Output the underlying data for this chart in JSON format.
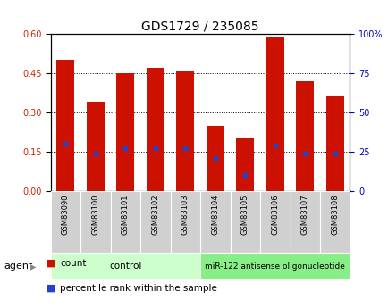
{
  "title": "GDS1729 / 235085",
  "samples": [
    "GSM83090",
    "GSM83100",
    "GSM83101",
    "GSM83102",
    "GSM83103",
    "GSM83104",
    "GSM83105",
    "GSM83106",
    "GSM83107",
    "GSM83108"
  ],
  "count_values": [
    0.5,
    0.34,
    0.45,
    0.47,
    0.46,
    0.25,
    0.2,
    0.59,
    0.42,
    0.36
  ],
  "percentile_values": [
    30,
    24,
    27,
    27,
    27,
    21,
    10,
    29,
    24,
    24
  ],
  "ylim_left": [
    0,
    0.6
  ],
  "ylim_right": [
    0,
    100
  ],
  "yticks_left": [
    0,
    0.15,
    0.3,
    0.45,
    0.6
  ],
  "yticks_right": [
    0,
    25,
    50,
    75,
    100
  ],
  "bar_color": "#cc1100",
  "marker_color": "#2244cc",
  "bar_width": 0.6,
  "group_control_label": "control",
  "group_control_color": "#ccffcc",
  "group_mir_label": "miR-122 antisense oligonucleotide",
  "group_mir_color": "#88ee88",
  "agent_label": "agent",
  "legend_count": "count",
  "legend_percentile": "percentile rank within the sample",
  "tick_label_color_left": "#cc2200",
  "tick_label_color_right": "#0000cc",
  "background_color": "#ffffff",
  "plot_bg_color": "#ffffff",
  "xlabel_bg_color": "#d0d0d0",
  "border_color": "#000000",
  "title_fontsize": 10,
  "tick_fontsize": 7,
  "xlabel_fontsize": 6,
  "legend_fontsize": 7.5
}
